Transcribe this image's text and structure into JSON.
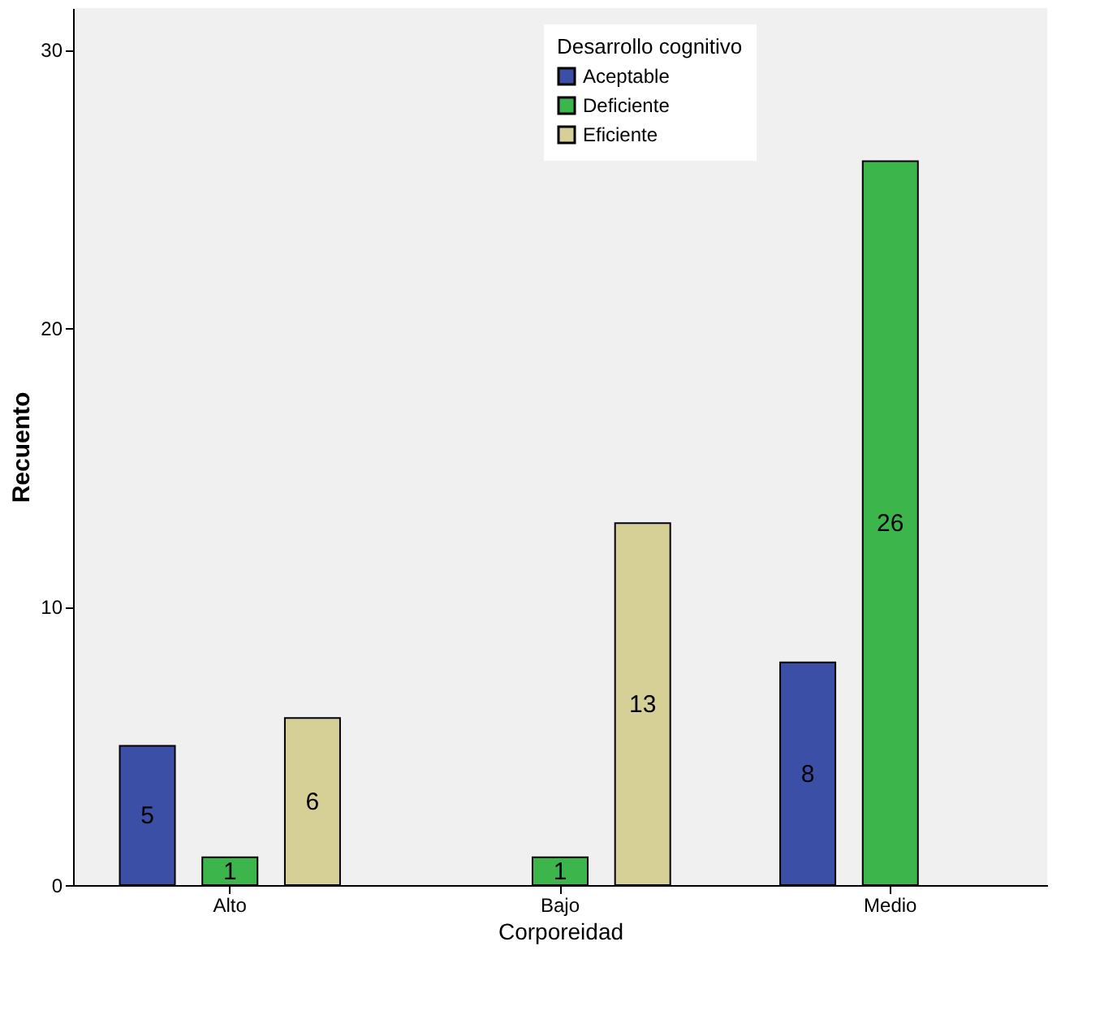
{
  "chart_data": {
    "type": "bar",
    "xlabel": "Corporeidad",
    "ylabel": "Recuento",
    "legend_title": "Desarrollo cognitivo",
    "categories": [
      "Alto",
      "Bajo",
      "Medio"
    ],
    "series": [
      {
        "name": "Aceptable",
        "color": "#3c4fa6",
        "values": [
          5,
          null,
          8
        ]
      },
      {
        "name": "Deficiente",
        "color": "#3cb54a",
        "values": [
          1,
          1,
          26
        ]
      },
      {
        "name": "Eficiente",
        "color": "#d6cf96",
        "values": [
          6,
          13,
          null
        ]
      }
    ],
    "ylim": [
      0,
      31.5
    ],
    "yticks": [
      0,
      10,
      20,
      30
    ],
    "grid": false,
    "legend": "top right",
    "data_labels": true
  }
}
